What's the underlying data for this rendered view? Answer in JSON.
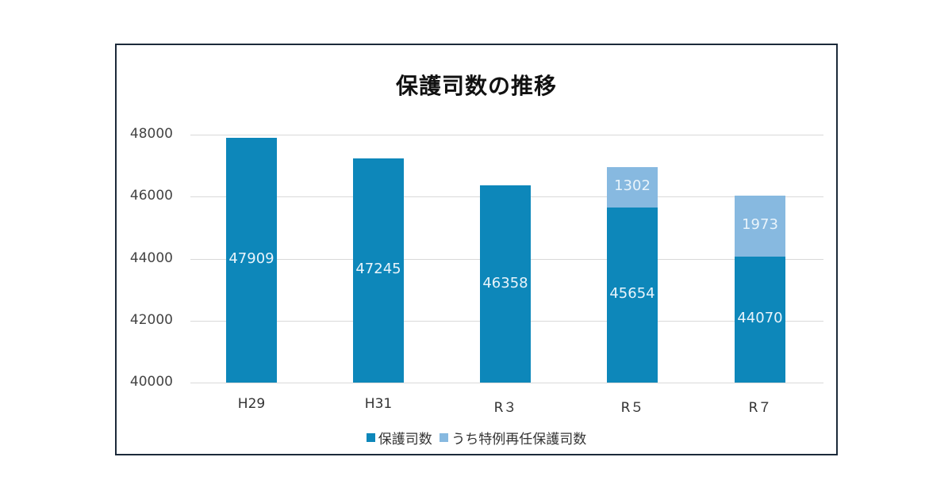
{
  "chart_data": {
    "type": "bar",
    "stacked": true,
    "title": "保護司数の推移",
    "xlabel": "",
    "ylabel": "",
    "ylim": [
      40000,
      48000
    ],
    "yticks": [
      40000,
      42000,
      44000,
      46000,
      48000
    ],
    "grid": true,
    "legend_position": "bottom",
    "categories": [
      "H29",
      "H31",
      "R３",
      "R５",
      "R７"
    ],
    "series": [
      {
        "name": "保護司数",
        "color": "#0d87ba",
        "values": [
          47909,
          47245,
          46358,
          45654,
          44070
        ]
      },
      {
        "name": "うち特例再任保護司数",
        "color": "#87b9e0",
        "values": [
          null,
          null,
          null,
          1302,
          1973
        ]
      }
    ]
  },
  "title": "保護司数の推移",
  "yticks": [
    "48000",
    "46000",
    "44000",
    "42000",
    "40000"
  ],
  "xticks": [
    "H29",
    "H31",
    "R３",
    "R５",
    "R７"
  ],
  "labels": {
    "main": [
      "47909",
      "47245",
      "46358",
      "45654",
      "44070"
    ],
    "extra": [
      "",
      "",
      "",
      "1302",
      "1973"
    ]
  },
  "legend": [
    "保護司数",
    "うち特例再任保護司数"
  ]
}
